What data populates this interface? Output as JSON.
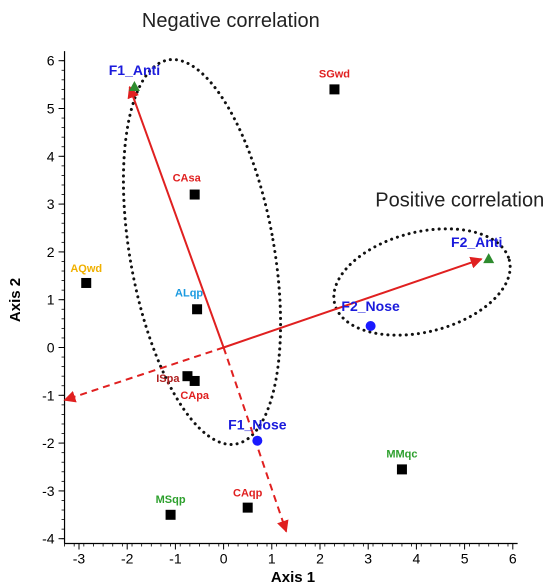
{
  "chart_data": {
    "type": "scatter",
    "title": "",
    "xlabel": "Axis 1",
    "ylabel": "Axis 2",
    "xlim": [
      -3.3,
      6.1
    ],
    "ylim": [
      -4.1,
      6.2
    ],
    "x_ticks": [
      -3,
      -2,
      -1,
      0,
      1,
      2,
      3,
      4,
      5,
      6
    ],
    "y_ticks": [
      -4,
      -3,
      -2,
      -1,
      0,
      1,
      2,
      3,
      4,
      5,
      6
    ],
    "grid": false,
    "annotations": [
      {
        "text": "Negative correlation",
        "x": 0.15,
        "y": 6.7
      },
      {
        "text": "Positive correlation",
        "x": 4.9,
        "y": 2.95
      }
    ],
    "points": [
      {
        "label": "F1_Anti",
        "x": -1.85,
        "y": 5.45,
        "marker": "triangle",
        "marker_color": "#2e8b2e",
        "label_color": "#1a1adc"
      },
      {
        "label": "F2_Anti",
        "x": 5.5,
        "y": 1.85,
        "marker": "triangle",
        "marker_color": "#2e8b2e",
        "label_color": "#1a1adc"
      },
      {
        "label": "F2_Nose",
        "x": 3.05,
        "y": 0.45,
        "marker": "circle",
        "marker_color": "#1a1aff",
        "label_color": "#1a1adc"
      },
      {
        "label": "F1_Nose",
        "x": 0.7,
        "y": -1.95,
        "marker": "circle",
        "marker_color": "#1a1aff",
        "label_color": "#1a1adc"
      },
      {
        "label": "SGwd",
        "x": 2.3,
        "y": 5.4,
        "marker": "square",
        "marker_color": "#000000",
        "label_color": "#e02020"
      },
      {
        "label": "CAsa",
        "x": -0.6,
        "y": 3.2,
        "marker": "square",
        "marker_color": "#000000",
        "label_color": "#e02020"
      },
      {
        "label": "AQwd",
        "x": -2.85,
        "y": 1.35,
        "marker": "square",
        "marker_color": "#000000",
        "label_color": "#f0b000"
      },
      {
        "label": "ALqp",
        "x": -0.55,
        "y": 0.8,
        "marker": "square",
        "marker_color": "#000000",
        "label_color": "#1a9ae0"
      },
      {
        "label": "ISpa",
        "x": -0.75,
        "y": -0.6,
        "marker": "square",
        "marker_color": "#000000",
        "label_color": "#b02020"
      },
      {
        "label": "CApa",
        "x": -0.6,
        "y": -0.7,
        "marker": "square",
        "marker_color": "#000000",
        "label_color": "#e02020"
      },
      {
        "label": "CAqp",
        "x": 0.5,
        "y": -3.35,
        "marker": "square",
        "marker_color": "#000000",
        "label_color": "#e02020"
      },
      {
        "label": "MSqp",
        "x": -1.1,
        "y": -3.5,
        "marker": "square",
        "marker_color": "#000000",
        "label_color": "#2ea02e"
      },
      {
        "label": "MMqc",
        "x": 3.7,
        "y": -2.55,
        "marker": "square",
        "marker_color": "#000000",
        "label_color": "#2ea02e"
      }
    ],
    "arrows": [
      {
        "from": [
          0,
          0
        ],
        "to": [
          -1.95,
          5.45
        ],
        "style": "solid",
        "color": "#e02020"
      },
      {
        "from": [
          0,
          0
        ],
        "to": [
          5.35,
          1.85
        ],
        "style": "solid",
        "color": "#e02020"
      },
      {
        "from": [
          0,
          0
        ],
        "to": [
          1.3,
          -3.85
        ],
        "style": "dashed",
        "color": "#e02020"
      },
      {
        "from": [
          0,
          0
        ],
        "to": [
          -3.3,
          -1.1
        ],
        "style": "dashed",
        "color": "#e02020"
      }
    ],
    "ellipses": [
      {
        "name": "negative-correlation-ellipse",
        "center": [
          -0.6,
          1.9
        ],
        "style": "dotted"
      },
      {
        "name": "positive-correlation-ellipse",
        "center": [
          4.0,
          1.1
        ],
        "style": "dotted"
      }
    ]
  }
}
